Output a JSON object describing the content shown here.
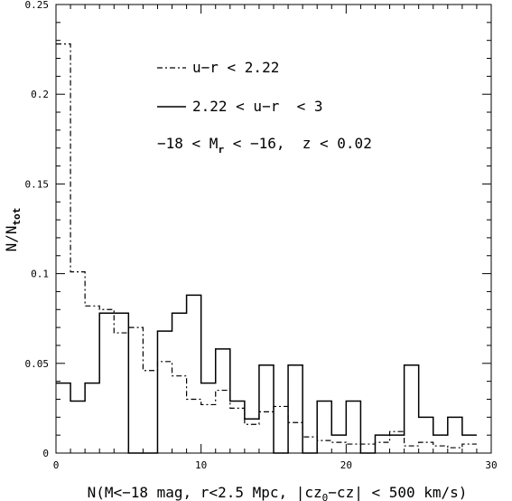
{
  "chart_data": {
    "type": "histogram",
    "xlabel_parts": [
      "N(M<−18 mag, r<2.5 Mpc, |cz",
      "0",
      "−cz| < 500 km/s)"
    ],
    "ylabel_parts": [
      "N/N",
      "tot"
    ],
    "xlim": [
      0,
      30
    ],
    "ylim": [
      0,
      0.25
    ],
    "xticks": [
      0,
      10,
      20,
      30
    ],
    "xtick_labels": [
      "0",
      "10",
      "20",
      "30"
    ],
    "yticks": [
      0,
      0.05,
      0.1,
      0.15,
      0.2,
      0.25
    ],
    "ytick_labels": [
      "0",
      "0.05",
      "0.1",
      "0.15",
      "0.2",
      "0.25"
    ],
    "bin_width": 1,
    "legend_placement": "top-center",
    "legend": {
      "line1": "u−r < 2.22",
      "line2": "2.22 < u−r  < 3",
      "line3_parts": [
        "−18 < M",
        "r",
        " < −16,  z < 0.02"
      ]
    },
    "series": [
      {
        "name": "u−r < 2.22",
        "style": "dash-dot",
        "bin_starts": [
          0,
          1,
          2,
          3,
          4,
          5,
          6,
          7,
          8,
          9,
          10,
          11,
          12,
          13,
          14,
          15,
          16,
          17,
          18,
          19,
          20,
          21,
          22,
          23,
          24,
          25,
          26,
          27,
          28
        ],
        "values": [
          0.228,
          0.101,
          0.082,
          0.08,
          0.067,
          0.07,
          0.046,
          0.051,
          0.043,
          0.03,
          0.027,
          0.035,
          0.025,
          0.016,
          0.023,
          0.026,
          0.017,
          0.009,
          0.007,
          0.006,
          0.005,
          0.005,
          0.006,
          0.012,
          0.004,
          0.006,
          0.004,
          0.003,
          0.005
        ]
      },
      {
        "name": "2.22 < u−r  < 3",
        "style": "solid",
        "bin_starts": [
          0,
          1,
          2,
          3,
          4,
          5,
          6,
          7,
          8,
          9,
          10,
          11,
          12,
          13,
          14,
          15,
          16,
          17,
          18,
          19,
          20,
          21,
          22,
          23,
          24,
          25,
          26,
          27,
          28
        ],
        "values": [
          0.039,
          0.029,
          0.039,
          0.078,
          0.078,
          0.0,
          0.0,
          0.068,
          0.078,
          0.088,
          0.039,
          0.058,
          0.029,
          0.019,
          0.049,
          0.0,
          0.049,
          0.0,
          0.029,
          0.01,
          0.029,
          0.0,
          0.01,
          0.01,
          0.049,
          0.02,
          0.01,
          0.02,
          0.01
        ]
      }
    ]
  }
}
